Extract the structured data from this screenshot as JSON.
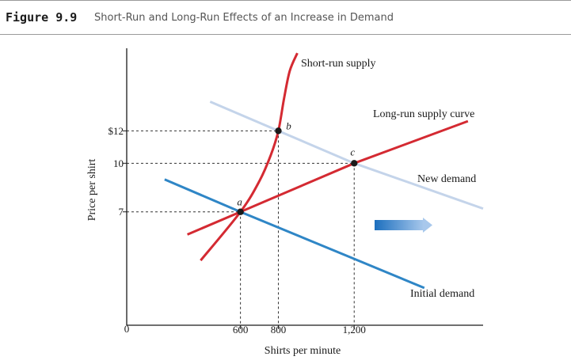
{
  "figure": {
    "label": "Figure 9.9",
    "title": "Short-Run and Long-Run Effects of an Increase in Demand"
  },
  "colors": {
    "supply": "#d42a32",
    "initial_demand": "#2f86c6",
    "new_demand": "#c4d4ea",
    "axis": "#1a1a1a",
    "guide": "#333333"
  },
  "chart_data": {
    "type": "line",
    "xlabel": "Shirts per minute",
    "ylabel": "Price per shirt",
    "origin_label": "0",
    "x_ticks": [
      {
        "value": 600,
        "label": "600"
      },
      {
        "value": 800,
        "label": "800"
      },
      {
        "value": 1200,
        "label": "1,200"
      }
    ],
    "y_ticks": [
      {
        "value": 12,
        "label": "$12"
      },
      {
        "value": 10,
        "label": "10"
      },
      {
        "value": 7,
        "label": "7"
      }
    ],
    "xlim": [
      0,
      1880
    ],
    "ylim": [
      0,
      17.1
    ],
    "series": [
      {
        "key": "short_run_supply",
        "name": "Short-run supply",
        "x": [
          390,
          600,
          700,
          760,
          800,
          830,
          860,
          900
        ],
        "y": [
          4,
          7,
          8.9,
          10.5,
          12,
          14,
          15.7,
          16.8
        ]
      },
      {
        "key": "long_run_supply",
        "name": "Long-run supply curve",
        "x": [
          320,
          600,
          1200,
          1800
        ],
        "y": [
          5.6,
          7,
          10,
          12.6
        ]
      },
      {
        "key": "new_demand",
        "name": "New demand",
        "x": [
          440,
          800,
          1200,
          1880
        ],
        "y": [
          13.8,
          12,
          10,
          7.2
        ]
      },
      {
        "key": "initial_demand",
        "name": "Initial demand",
        "x": [
          200,
          600,
          1200,
          1570
        ],
        "y": [
          9,
          7,
          4.1,
          2.3
        ]
      }
    ],
    "points": [
      {
        "label": "a",
        "x": 600,
        "y": 7
      },
      {
        "label": "b",
        "x": 800,
        "y": 12
      },
      {
        "label": "c",
        "x": 1200,
        "y": 10
      }
    ]
  }
}
